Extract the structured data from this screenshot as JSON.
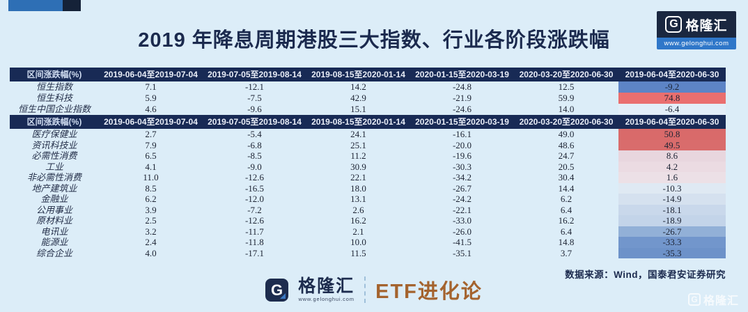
{
  "page": {
    "title": "2019 年降息周期港股三大指数、行业各阶段涨跌幅",
    "source_note": "数据来源：Wind，国泰君安证券研究",
    "background_color": "#dcedf8",
    "title_color": "#1b2a4e",
    "header_bar_color": "#182a55",
    "accent_blue": "#2e6fb5",
    "accent_navy": "#152238"
  },
  "brand": {
    "logo_letter": "G",
    "logo_text": "格隆汇",
    "website": "www.gelonghui.com",
    "footer_channel": "ETF进化论",
    "channel_color": "#a4632e"
  },
  "chart_data": {
    "type": "table",
    "title": "2019 年降息周期港股三大指数、行业各阶段涨跌幅",
    "corner_label": "区间涨跌幅(%)",
    "columns": [
      "2019-06-04至2019-07-04",
      "2019-07-05至2019-08-14",
      "2019-08-15至2020-01-14",
      "2020-01-15至2020-03-19",
      "2020-03-20至2020-06-30",
      "2019-06-04至2020-06-30"
    ],
    "heatmap_note": "last column cells shaded red for strong gains, blue for losses",
    "sections": [
      {
        "name": "indices",
        "rows": [
          {
            "label": "恒生指数",
            "values": [
              "7.1",
              "-12.1",
              "14.2",
              "-24.8",
              "12.5"
            ],
            "final": "-9.2",
            "final_bg": "#5d84c6"
          },
          {
            "label": "恒生科技",
            "values": [
              "5.9",
              "-7.5",
              "42.9",
              "-21.9",
              "59.9"
            ],
            "final": "74.8",
            "final_bg": "#ea6f6f"
          },
          {
            "label": "恒生中国企业指数",
            "values": [
              "4.6",
              "-9.6",
              "15.1",
              "-24.6",
              "14.0"
            ],
            "final": "-6.4",
            "final_bg": "#e3eef8"
          }
        ]
      },
      {
        "name": "industries",
        "rows": [
          {
            "label": "医疗保健业",
            "values": [
              "2.7",
              "-5.4",
              "24.1",
              "-16.1",
              "49.0"
            ],
            "final": "50.8",
            "final_bg": "#d96a6a"
          },
          {
            "label": "资讯科技业",
            "values": [
              "7.9",
              "-6.8",
              "25.1",
              "-20.0",
              "48.6"
            ],
            "final": "49.5",
            "final_bg": "#d96c6c"
          },
          {
            "label": "必需性消费",
            "values": [
              "6.5",
              "-8.5",
              "11.2",
              "-19.6",
              "24.7"
            ],
            "final": "8.6",
            "final_bg": "#e8d6de"
          },
          {
            "label": "工业",
            "values": [
              "4.1",
              "-9.0",
              "30.9",
              "-30.3",
              "20.5"
            ],
            "final": "4.2",
            "final_bg": "#ebdbe2"
          },
          {
            "label": "非必需性消费",
            "values": [
              "11.0",
              "-12.6",
              "22.1",
              "-34.2",
              "30.4"
            ],
            "final": "1.6",
            "final_bg": "#ece0e6"
          },
          {
            "label": "地产建筑业",
            "values": [
              "8.5",
              "-16.5",
              "18.0",
              "-26.7",
              "14.4"
            ],
            "final": "-10.3",
            "final_bg": "#dfe9f3"
          },
          {
            "label": "金融业",
            "values": [
              "6.2",
              "-12.0",
              "13.1",
              "-24.2",
              "6.2"
            ],
            "final": "-14.9",
            "final_bg": "#d5e1ef"
          },
          {
            "label": "公用事业",
            "values": [
              "3.9",
              "-7.2",
              "2.6",
              "-22.1",
              "6.4"
            ],
            "final": "-18.1",
            "final_bg": "#c9d8eb"
          },
          {
            "label": "原材料业",
            "values": [
              "2.5",
              "-12.6",
              "16.2",
              "-33.0",
              "16.2"
            ],
            "final": "-18.9",
            "final_bg": "#c3d4e9"
          },
          {
            "label": "电讯业",
            "values": [
              "3.2",
              "-11.7",
              "2.1",
              "-26.0",
              "6.4"
            ],
            "final": "-26.7",
            "final_bg": "#92b0d7"
          },
          {
            "label": "能源业",
            "values": [
              "2.4",
              "-11.8",
              "10.0",
              "-41.5",
              "14.8"
            ],
            "final": "-33.3",
            "final_bg": "#7296cc"
          },
          {
            "label": "综合企业",
            "values": [
              "4.0",
              "-17.1",
              "11.5",
              "-35.1",
              "3.7"
            ],
            "final": "-35.3",
            "final_bg": "#6d92c9"
          }
        ]
      }
    ]
  }
}
